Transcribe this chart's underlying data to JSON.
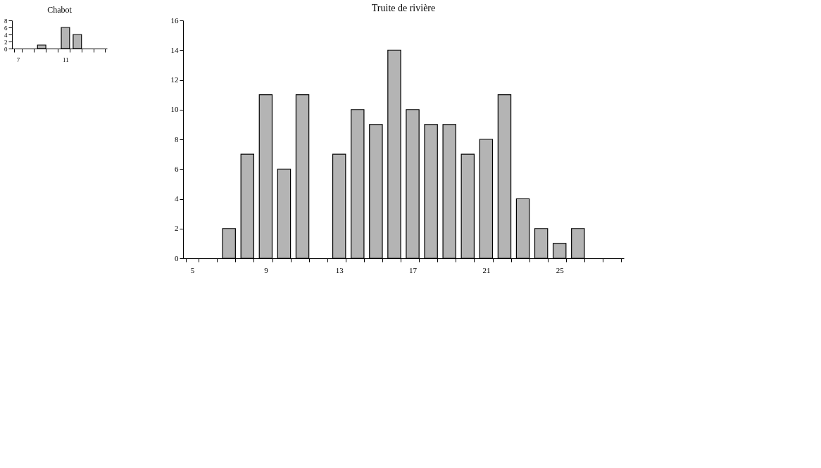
{
  "chart_data": [
    {
      "type": "bar",
      "title": "Chabot",
      "categories": [
        "7",
        null,
        null,
        null,
        "11",
        null,
        null,
        null
      ],
      "values": [
        0,
        0,
        1,
        0,
        6,
        4,
        0,
        0
      ],
      "color": "#b4b4b4",
      "ylim": [
        0,
        8
      ],
      "yticks": [
        0,
        2,
        4,
        6,
        8
      ],
      "grid": false
    },
    {
      "type": "bar",
      "title": "Truite de rivière",
      "categories": [
        "5",
        null,
        null,
        null,
        "9",
        null,
        null,
        null,
        "13",
        null,
        null,
        null,
        "17",
        null,
        null,
        null,
        "21",
        null,
        null,
        null,
        "25",
        null,
        null,
        null
      ],
      "values": [
        0,
        0,
        2,
        7,
        11,
        6,
        11,
        0,
        7,
        10,
        9,
        14,
        10,
        9,
        9,
        7,
        8,
        11,
        4,
        2,
        1,
        2,
        0,
        0
      ],
      "color": "#b4b4b4",
      "ylim": [
        0,
        16
      ],
      "yticks": [
        0,
        2,
        4,
        6,
        8,
        10,
        12,
        14,
        16
      ],
      "grid": false
    }
  ]
}
